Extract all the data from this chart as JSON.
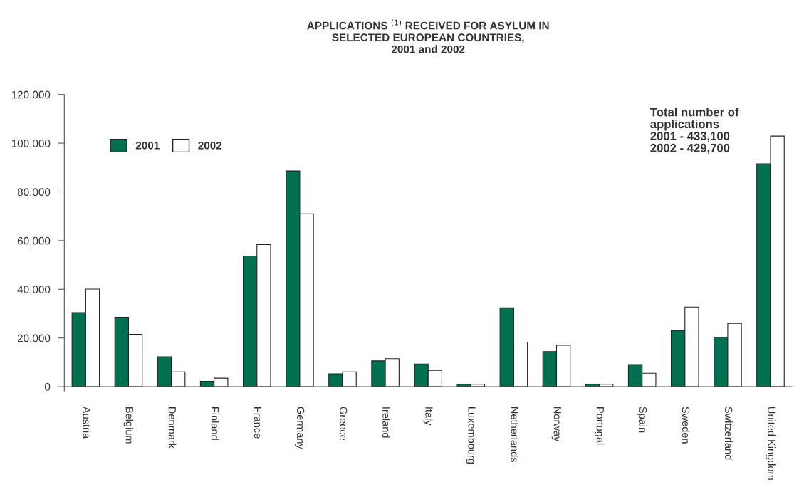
{
  "chart_data": {
    "type": "bar",
    "title": "APPLICATIONS $^{(1)}$ RECEIVED FOR ASYLUM IN\nSELECTED EUROPEAN COUNTRIES,\n2001 and 2002",
    "categories": [
      "Austria",
      "Belgium",
      "Denmark",
      "Finland",
      "France",
      "Germany",
      "Greece",
      "Ireland",
      "Italy",
      "Luxembourg",
      "Netherlands",
      "Norway",
      "Portugal",
      "Spain",
      "Sweden",
      "Switzerland",
      "United Kingdom"
    ],
    "series": [
      {
        "name": "2001",
        "color": "#007050",
        "values": [
          30400,
          28500,
          12300,
          2200,
          53700,
          88600,
          5300,
          10600,
          9300,
          1000,
          32400,
          14400,
          1000,
          9100,
          23100,
          20300,
          91500
        ]
      },
      {
        "name": "2002",
        "color": "#ffffff",
        "values": [
          40100,
          21500,
          6100,
          3500,
          58400,
          71000,
          6100,
          11500,
          6700,
          1000,
          18300,
          17000,
          1000,
          5500,
          32700,
          26000,
          102900
        ]
      }
    ],
    "ylim": [
      0,
      120000
    ],
    "yticks": [
      {
        "value": 0,
        "label": "0"
      },
      {
        "value": 20000,
        "label": "20,000"
      },
      {
        "value": 40000,
        "label": "40,000"
      },
      {
        "value": 60000,
        "label": "60,000"
      },
      {
        "value": 80000,
        "label": "80,000"
      },
      {
        "value": 100000,
        "label": "100,000"
      },
      {
        "value": 120000,
        "label": "120,000"
      }
    ],
    "annotations": [
      "Total number of\napplications\n2001 - 433,100\n2002 - 429,700"
    ],
    "legend": "top left",
    "grid": false
  }
}
